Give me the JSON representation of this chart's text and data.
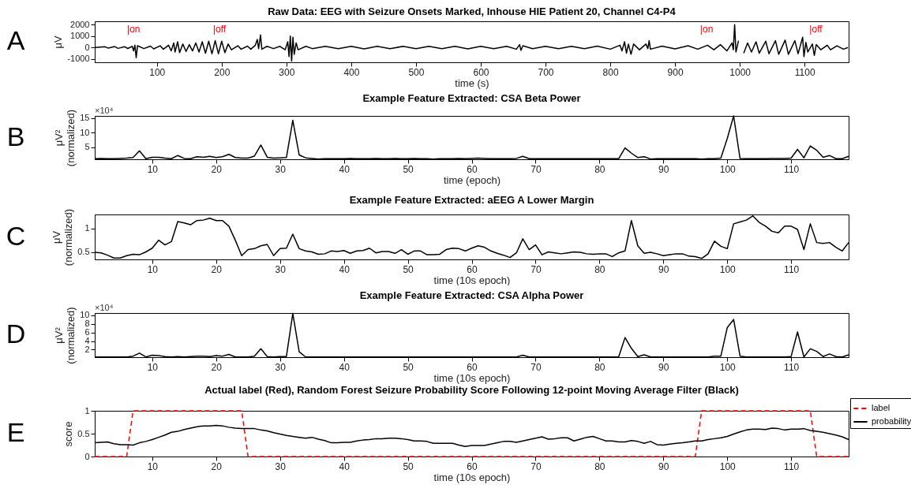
{
  "chart_data": [
    {
      "type": "line",
      "title": "Raw Data: EEG with Seizure Onsets Marked, Inhouse HIE Patient 20, Channel C4-P4",
      "xlabel": "time (s)",
      "ylabel": "μV",
      "xlim": [
        4,
        1168
      ],
      "xticks": [
        100,
        200,
        300,
        400,
        500,
        600,
        700,
        800,
        900,
        1000,
        1100
      ],
      "ylim": [
        -1300,
        2300
      ],
      "yticks": [
        -1000,
        0,
        1000,
        2000
      ],
      "annotations": [
        "A",
        "|on",
        "|off",
        "|on",
        "|off"
      ],
      "series": [
        {
          "color": "#000000",
          "x": [
            5,
            20,
            25,
            35,
            40,
            50,
            55,
            62,
            64,
            66,
            68,
            70,
            80,
            90,
            95,
            105,
            110,
            118,
            122,
            126,
            128,
            132,
            135,
            140,
            145,
            150,
            155,
            160,
            165,
            170,
            175,
            180,
            185,
            190,
            195,
            200,
            205,
            210,
            215,
            225,
            230,
            240,
            245,
            252,
            255,
            257,
            260,
            262,
            270,
            280,
            290,
            298,
            302,
            304,
            306,
            308,
            310,
            312,
            315,
            318,
            330,
            340,
            360,
            380,
            400,
            420,
            440,
            460,
            480,
            500,
            520,
            540,
            560,
            580,
            600,
            620,
            640,
            655,
            660,
            662,
            665,
            680,
            700,
            720,
            740,
            760,
            780,
            800,
            815,
            818,
            822,
            825,
            828,
            832,
            836,
            845,
            855,
            858,
            860,
            862,
            880,
            900,
            920,
            935,
            950,
            960,
            970,
            980,
            988,
            990,
            992,
            994,
            998,
            1000,
            1002,
            1004,
            1006,
            1012,
            1018,
            1025,
            1030,
            1040,
            1045,
            1055,
            1060,
            1070,
            1075,
            1085,
            1090,
            1097,
            1099,
            1102,
            1105,
            1112,
            1115,
            1118,
            1125,
            1135,
            1140,
            1150,
            1160,
            1167
          ],
          "values": [
            0,
            60,
            -60,
            80,
            -80,
            70,
            -90,
            100,
            -300,
            200,
            -900,
            150,
            -100,
            120,
            -120,
            150,
            -150,
            200,
            -300,
            400,
            -400,
            500,
            -450,
            300,
            -350,
            250,
            -300,
            400,
            -400,
            500,
            -500,
            550,
            -550,
            600,
            -550,
            550,
            -450,
            300,
            -200,
            150,
            -150,
            120,
            -150,
            200,
            700,
            -100,
            1100,
            -150,
            100,
            -100,
            100,
            -200,
            500,
            -800,
            1000,
            -1200,
            900,
            -600,
            400,
            -200,
            100,
            -100,
            100,
            -100,
            100,
            -120,
            100,
            -100,
            100,
            -100,
            100,
            -100,
            100,
            -120,
            100,
            -100,
            100,
            -150,
            250,
            -250,
            150,
            -100,
            100,
            -100,
            100,
            -100,
            120,
            -150,
            200,
            -300,
            500,
            -500,
            300,
            -600,
            300,
            -200,
            300,
            -100,
            600,
            -150,
            120,
            -120,
            150,
            -150,
            200,
            -200,
            250,
            -300,
            400,
            -200,
            2000,
            -400,
            600,
            null,
            -600,
            null,
            -500,
            400,
            -400,
            500,
            -500,
            550,
            -550,
            600,
            -600,
            650,
            -600,
            600,
            -550,
            900,
            -800,
            450,
            -400,
            300,
            -700,
            250,
            -200,
            200,
            -200,
            150,
            -150,
            0
          ]
        }
      ]
    },
    {
      "type": "line",
      "title": "Example Feature Extracted: CSA Beta Power",
      "xlabel": "time (epoch)",
      "ylabel": "μV²\n(normalized)",
      "xlim": [
        1,
        119
      ],
      "xticks": [
        10,
        20,
        30,
        40,
        50,
        60,
        70,
        80,
        90,
        100,
        110
      ],
      "ylim": [
        0.9,
        15.8
      ],
      "yticks": [
        5,
        10,
        15
      ],
      "annotations": [
        "B",
        "×10⁴"
      ],
      "x": [
        1,
        2,
        3,
        4,
        5,
        6,
        7,
        8,
        9,
        10,
        11,
        12,
        13,
        14,
        15,
        16,
        17,
        18,
        19,
        20,
        21,
        22,
        23,
        24,
        25,
        26,
        27,
        28,
        29,
        30,
        31,
        32,
        33,
        34,
        35,
        36,
        37,
        38,
        39,
        40,
        41,
        42,
        43,
        44,
        45,
        46,
        47,
        48,
        49,
        50,
        51,
        52,
        53,
        54,
        55,
        56,
        57,
        58,
        59,
        60,
        61,
        62,
        63,
        64,
        65,
        66,
        67,
        68,
        69,
        70,
        71,
        72,
        73,
        74,
        75,
        76,
        77,
        78,
        79,
        80,
        81,
        82,
        83,
        84,
        85,
        86,
        87,
        88,
        89,
        90,
        91,
        92,
        93,
        94,
        95,
        96,
        97,
        98,
        99,
        100,
        101,
        102,
        103,
        104,
        105,
        106,
        107,
        108,
        109,
        110,
        111,
        112,
        113,
        114,
        115,
        116,
        117,
        118,
        119
      ],
      "series": [
        {
          "color": "#000000",
          "values": [
            1.1,
            1.2,
            1.1,
            1.1,
            1.2,
            1.3,
            1.5,
            3.8,
            1.1,
            1.6,
            1.6,
            1.3,
            1.1,
            2.2,
            1.2,
            1.1,
            1.8,
            1.6,
            1.9,
            1.5,
            1.8,
            2.6,
            1.5,
            1.3,
            1.3,
            2.0,
            5.8,
            1.6,
            1.3,
            1.4,
            1.5,
            14.3,
            2.4,
            1.4,
            1.2,
            1.0,
            1.1,
            1.1,
            1.1,
            1.1,
            1.2,
            1.1,
            1.1,
            1.1,
            1.2,
            1.1,
            1.1,
            1.2,
            1.1,
            1.1,
            1.2,
            1.1,
            1.1,
            1.0,
            1.1,
            1.1,
            1.1,
            1.2,
            1.1,
            1.2,
            1.3,
            1.2,
            1.1,
            1.1,
            1.1,
            1.1,
            1.2,
            1.9,
            1.1,
            1.1,
            1.1,
            1.1,
            1.1,
            1.1,
            1.1,
            1.1,
            1.1,
            1.1,
            1.1,
            1.1,
            1.1,
            1.1,
            1.1,
            4.8,
            3.0,
            1.5,
            1.8,
            1.0,
            1.1,
            1.1,
            1.1,
            1.1,
            1.1,
            1.1,
            1.1,
            1.0,
            1.1,
            1.1,
            1.3,
            8.0,
            15.8,
            1.2,
            1.1,
            1.1,
            1.1,
            1.1,
            1.2,
            1.2,
            1.2,
            1.3,
            4.3,
            1.4,
            5.5,
            4.0,
            1.6,
            2.2,
            1.1,
            1.1,
            1.9
          ]
        }
      ]
    },
    {
      "type": "line",
      "title": "Example Feature Extracted: aEEG A Lower Margin",
      "xlabel": "time (10s epoch)",
      "ylabel": "μV\n(normalized)",
      "xlim": [
        1,
        119
      ],
      "xticks": [
        10,
        20,
        30,
        40,
        50,
        60,
        70,
        80,
        90,
        100,
        110
      ],
      "ylim": [
        0.34,
        1.3
      ],
      "yticks": [
        0.5,
        1
      ],
      "annotations": [
        "C"
      ],
      "x": [
        1,
        2,
        3,
        4,
        5,
        6,
        7,
        8,
        9,
        10,
        11,
        12,
        13,
        14,
        15,
        16,
        17,
        18,
        19,
        20,
        21,
        22,
        23,
        24,
        25,
        26,
        27,
        28,
        29,
        30,
        31,
        32,
        33,
        34,
        35,
        36,
        37,
        38,
        39,
        40,
        41,
        42,
        43,
        44,
        45,
        46,
        47,
        48,
        49,
        50,
        51,
        52,
        53,
        54,
        55,
        56,
        57,
        58,
        59,
        60,
        61,
        62,
        63,
        64,
        65,
        66,
        67,
        68,
        69,
        70,
        71,
        72,
        73,
        74,
        75,
        76,
        77,
        78,
        79,
        80,
        81,
        82,
        83,
        84,
        85,
        86,
        87,
        88,
        89,
        90,
        91,
        92,
        93,
        94,
        95,
        96,
        97,
        98,
        99,
        100,
        101,
        102,
        103,
        104,
        105,
        106,
        107,
        108,
        109,
        110,
        111,
        112,
        113,
        114,
        115,
        116,
        117,
        118,
        119
      ],
      "series": [
        {
          "color": "#000000",
          "values": [
            0.49,
            0.48,
            0.43,
            0.37,
            0.37,
            0.42,
            0.45,
            0.44,
            0.5,
            0.58,
            0.75,
            0.65,
            0.72,
            1.15,
            1.12,
            1.08,
            1.17,
            1.18,
            1.22,
            1.17,
            1.17,
            1.05,
            0.75,
            0.42,
            0.55,
            0.57,
            0.63,
            0.66,
            0.42,
            0.57,
            0.58,
            0.88,
            0.57,
            0.52,
            0.5,
            0.45,
            0.46,
            0.52,
            0.51,
            0.53,
            0.47,
            0.52,
            0.53,
            0.58,
            0.48,
            0.51,
            0.51,
            0.47,
            0.55,
            0.45,
            0.52,
            0.52,
            0.44,
            0.44,
            0.45,
            0.55,
            0.58,
            0.57,
            0.52,
            0.58,
            0.63,
            0.6,
            0.52,
            0.47,
            0.43,
            0.38,
            0.48,
            0.78,
            0.55,
            0.65,
            0.44,
            0.5,
            0.48,
            0.46,
            0.48,
            0.5,
            0.49,
            0.46,
            0.45,
            0.46,
            0.46,
            0.4,
            0.48,
            0.52,
            1.17,
            0.63,
            0.47,
            0.49,
            0.46,
            0.42,
            0.44,
            0.46,
            0.46,
            0.41,
            0.4,
            0.36,
            0.46,
            0.73,
            0.62,
            0.57,
            1.1,
            1.14,
            1.18,
            1.27,
            1.13,
            1.05,
            0.94,
            0.91,
            1.05,
            1.05,
            0.98,
            0.55,
            1.1,
            0.7,
            0.68,
            0.7,
            0.6,
            0.52,
            0.7
          ]
        }
      ]
    },
    {
      "type": "line",
      "title": "Example Feature Extracted: CSA Alpha Power",
      "xlabel": "time (10s epoch)",
      "ylabel": "μV²\n(normalized)",
      "xlim": [
        1,
        119
      ],
      "xticks": [
        10,
        20,
        30,
        40,
        50,
        60,
        70,
        80,
        90,
        100,
        110
      ],
      "ylim": [
        0.25,
        10.5
      ],
      "yticks": [
        2,
        4,
        6,
        8,
        10
      ],
      "annotations": [
        "D",
        "×10⁴"
      ],
      "x": [
        1,
        2,
        3,
        4,
        5,
        6,
        7,
        8,
        9,
        10,
        11,
        12,
        13,
        14,
        15,
        16,
        17,
        18,
        19,
        20,
        21,
        22,
        23,
        24,
        25,
        26,
        27,
        28,
        29,
        30,
        31,
        32,
        33,
        34,
        35,
        36,
        37,
        38,
        39,
        40,
        41,
        42,
        43,
        44,
        45,
        46,
        47,
        48,
        49,
        50,
        51,
        52,
        53,
        54,
        55,
        56,
        57,
        58,
        59,
        60,
        61,
        62,
        63,
        64,
        65,
        66,
        67,
        68,
        69,
        70,
        71,
        72,
        73,
        74,
        75,
        76,
        77,
        78,
        79,
        80,
        81,
        82,
        83,
        84,
        85,
        86,
        87,
        88,
        89,
        90,
        91,
        92,
        93,
        94,
        95,
        96,
        97,
        98,
        99,
        100,
        101,
        102,
        103,
        104,
        105,
        106,
        107,
        108,
        109,
        110,
        111,
        112,
        113,
        114,
        115,
        116,
        117,
        118,
        119
      ],
      "series": [
        {
          "color": "#000000",
          "values": [
            0.3,
            0.3,
            0.3,
            0.3,
            0.3,
            0.3,
            0.5,
            1.2,
            0.3,
            0.7,
            0.6,
            0.4,
            0.3,
            0.4,
            0.3,
            0.4,
            0.5,
            0.5,
            0.4,
            0.6,
            0.5,
            0.9,
            0.3,
            0.3,
            0.3,
            0.5,
            2.2,
            0.4,
            0.3,
            0.4,
            0.4,
            10.4,
            1.5,
            0.3,
            0.3,
            0.3,
            0.3,
            0.3,
            0.3,
            0.3,
            0.3,
            0.3,
            0.3,
            0.3,
            0.3,
            0.3,
            0.3,
            0.3,
            0.3,
            0.3,
            0.3,
            0.3,
            0.3,
            0.3,
            0.3,
            0.3,
            0.3,
            0.3,
            0.3,
            0.3,
            0.3,
            0.3,
            0.3,
            0.3,
            0.3,
            0.3,
            0.3,
            0.7,
            0.3,
            0.3,
            0.3,
            0.3,
            0.3,
            0.3,
            0.3,
            0.3,
            0.3,
            0.3,
            0.3,
            0.3,
            0.3,
            0.3,
            0.3,
            4.8,
            2.3,
            0.4,
            0.8,
            0.3,
            0.3,
            0.3,
            0.3,
            0.3,
            0.3,
            0.3,
            0.3,
            0.3,
            0.3,
            0.5,
            0.5,
            7.1,
            9.0,
            0.5,
            0.3,
            0.3,
            0.3,
            0.3,
            0.3,
            0.3,
            0.3,
            0.4,
            6.1,
            0.3,
            2.2,
            1.6,
            0.4,
            1.0,
            0.4,
            0.3,
            0.8
          ]
        }
      ]
    },
    {
      "type": "line",
      "title": "Actual label (Red), Random Forest Seizure Probability Score Following 12-point Moving Average Filter (Black)",
      "xlabel": "time (10s epoch)",
      "ylabel": "score",
      "xlim": [
        1,
        119
      ],
      "xticks": [
        10,
        20,
        30,
        40,
        50,
        60,
        70,
        80,
        90,
        100,
        110
      ],
      "ylim": [
        0,
        1
      ],
      "yticks": [
        0,
        0.5,
        1
      ],
      "legend": "top right",
      "annotations": [
        "E"
      ],
      "x": [
        1,
        2,
        3,
        4,
        5,
        6,
        7,
        8,
        9,
        10,
        11,
        12,
        13,
        14,
        15,
        16,
        17,
        18,
        19,
        20,
        21,
        22,
        23,
        24,
        25,
        26,
        27,
        28,
        29,
        30,
        31,
        32,
        33,
        34,
        35,
        36,
        37,
        38,
        39,
        40,
        41,
        42,
        43,
        44,
        45,
        46,
        47,
        48,
        49,
        50,
        51,
        52,
        53,
        54,
        55,
        56,
        57,
        58,
        59,
        60,
        61,
        62,
        63,
        64,
        65,
        66,
        67,
        68,
        69,
        70,
        71,
        72,
        73,
        74,
        75,
        76,
        77,
        78,
        79,
        80,
        81,
        82,
        83,
        84,
        85,
        86,
        87,
        88,
        89,
        90,
        91,
        92,
        93,
        94,
        95,
        96,
        97,
        98,
        99,
        100,
        101,
        102,
        103,
        104,
        105,
        106,
        107,
        108,
        109,
        110,
        111,
        112,
        113,
        114,
        115,
        116,
        117,
        118,
        119
      ],
      "series": [
        {
          "name": "label",
          "color": "#ff0000",
          "line_style": "dashed",
          "values": [
            0,
            0,
            0,
            0,
            0,
            0,
            1,
            1,
            1,
            1,
            1,
            1,
            1,
            1,
            1,
            1,
            1,
            1,
            1,
            1,
            1,
            1,
            1,
            1,
            0,
            0,
            0,
            0,
            0,
            0,
            0,
            0,
            0,
            0,
            0,
            0,
            0,
            0,
            0,
            0,
            0,
            0,
            0,
            0,
            0,
            0,
            0,
            0,
            0,
            0,
            0,
            0,
            0,
            0,
            0,
            0,
            0,
            0,
            0,
            0,
            0,
            0,
            0,
            0,
            0,
            0,
            0,
            0,
            0,
            0,
            0,
            0,
            0,
            0,
            0,
            0,
            0,
            0,
            0,
            0,
            0,
            0,
            0,
            0,
            0,
            0,
            0,
            0,
            0,
            0,
            0,
            0,
            0,
            0,
            0,
            1,
            1,
            1,
            1,
            1,
            1,
            1,
            1,
            1,
            1,
            1,
            1,
            1,
            1,
            1,
            1,
            1,
            1,
            0,
            0,
            0,
            0,
            0,
            0
          ]
        },
        {
          "name": "probability",
          "color": "#000000",
          "line_style": "solid",
          "values": [
            0.3,
            0.31,
            0.32,
            0.28,
            0.26,
            0.26,
            0.25,
            0.3,
            0.33,
            0.37,
            0.42,
            0.47,
            0.53,
            0.55,
            0.59,
            0.62,
            0.65,
            0.67,
            0.67,
            0.68,
            0.67,
            0.64,
            0.62,
            0.61,
            0.61,
            0.61,
            0.58,
            0.56,
            0.52,
            0.49,
            0.46,
            0.44,
            0.42,
            0.4,
            0.42,
            0.38,
            0.35,
            0.3,
            0.3,
            0.31,
            0.31,
            0.34,
            0.36,
            0.37,
            0.39,
            0.39,
            0.4,
            0.4,
            0.39,
            0.37,
            0.34,
            0.34,
            0.33,
            0.29,
            0.29,
            0.29,
            0.29,
            0.25,
            0.22,
            0.24,
            0.24,
            0.24,
            0.27,
            0.3,
            0.33,
            0.33,
            0.31,
            0.34,
            0.37,
            0.4,
            0.43,
            0.38,
            0.39,
            0.41,
            0.41,
            0.34,
            0.38,
            0.42,
            0.44,
            0.39,
            0.34,
            0.34,
            0.32,
            0.32,
            0.35,
            0.33,
            0.29,
            0.33,
            0.26,
            0.25,
            0.27,
            0.29,
            0.3,
            0.32,
            0.34,
            0.34,
            0.37,
            0.39,
            0.41,
            0.44,
            0.49,
            0.54,
            0.58,
            0.6,
            0.6,
            0.59,
            0.62,
            0.61,
            0.58,
            0.6,
            0.6,
            0.61,
            0.57,
            0.55,
            0.53,
            0.5,
            0.47,
            0.43,
            0.37
          ]
        }
      ]
    }
  ]
}
